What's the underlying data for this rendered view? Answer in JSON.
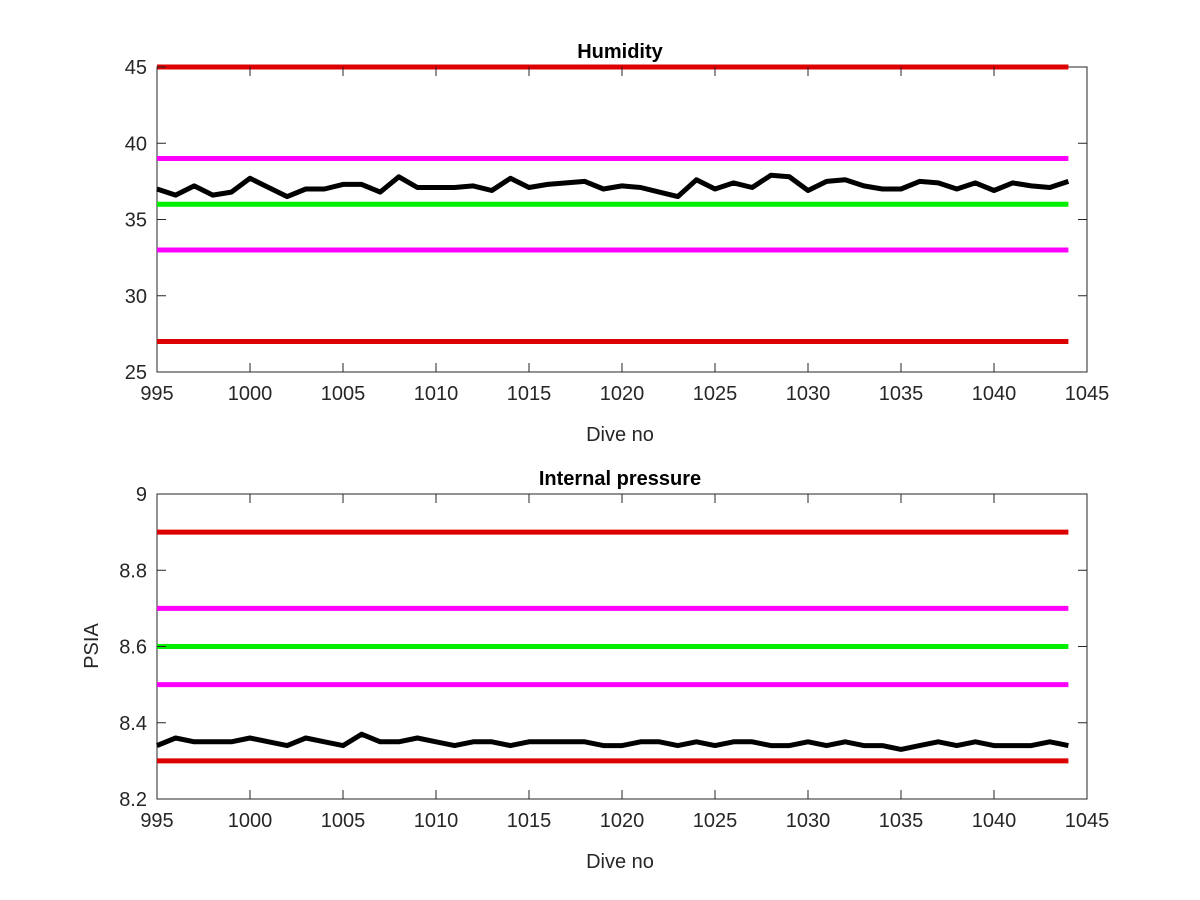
{
  "chart_data": [
    {
      "type": "line",
      "title": "Humidity",
      "xlabel": "Dive no",
      "ylabel": "",
      "xlim": [
        995,
        1045
      ],
      "ylim": [
        25,
        45
      ],
      "xticks": [
        "995",
        "1000",
        "1005",
        "1010",
        "1015",
        "1020",
        "1025",
        "1030",
        "1035",
        "1040",
        "1045"
      ],
      "yticks": [
        "25",
        "30",
        "35",
        "40",
        "45"
      ],
      "grid": false,
      "legend": "none",
      "hlines": [
        {
          "y": 45,
          "color": "#dd0000"
        },
        {
          "y": 39,
          "color": "#ff00ff"
        },
        {
          "y": 36,
          "color": "#00ee00"
        },
        {
          "y": 33,
          "color": "#ff00ff"
        },
        {
          "y": 27,
          "color": "#dd0000"
        }
      ],
      "series": [
        {
          "color": "#000000",
          "x": [
            995,
            996,
            997,
            998,
            999,
            1000,
            1001,
            1002,
            1003,
            1004,
            1005,
            1006,
            1007,
            1008,
            1009,
            1010,
            1011,
            1012,
            1013,
            1014,
            1015,
            1016,
            1017,
            1018,
            1019,
            1020,
            1021,
            1022,
            1023,
            1024,
            1025,
            1026,
            1027,
            1028,
            1029,
            1030,
            1031,
            1032,
            1033,
            1034,
            1035,
            1036,
            1037,
            1038,
            1039,
            1040,
            1041,
            1042,
            1043,
            1044
          ],
          "y": [
            37.0,
            36.6,
            37.2,
            36.6,
            36.8,
            37.7,
            37.1,
            36.5,
            37.0,
            37.0,
            37.3,
            37.3,
            36.8,
            37.8,
            37.1,
            37.1,
            37.1,
            37.2,
            36.9,
            37.7,
            37.1,
            37.3,
            37.4,
            37.5,
            37.0,
            37.2,
            37.1,
            36.8,
            36.5,
            37.6,
            37.0,
            37.4,
            37.1,
            37.9,
            37.8,
            36.9,
            37.5,
            37.6,
            37.2,
            37.0,
            37.0,
            37.5,
            37.4,
            37.0,
            37.4,
            36.9,
            37.4,
            37.2,
            37.1,
            37.5
          ]
        }
      ]
    },
    {
      "type": "line",
      "title": "Internal pressure",
      "xlabel": "Dive no",
      "ylabel": "PSIA",
      "xlim": [
        995,
        1045
      ],
      "ylim": [
        8.2,
        9.0
      ],
      "xticks": [
        "995",
        "1000",
        "1005",
        "1010",
        "1015",
        "1020",
        "1025",
        "1030",
        "1035",
        "1040",
        "1045"
      ],
      "yticks": [
        "8.2",
        "8.4",
        "8.6",
        "8.8",
        "9"
      ],
      "grid": false,
      "legend": "none",
      "hlines": [
        {
          "y": 8.9,
          "color": "#dd0000"
        },
        {
          "y": 8.7,
          "color": "#ff00ff"
        },
        {
          "y": 8.6,
          "color": "#00ee00"
        },
        {
          "y": 8.5,
          "color": "#ff00ff"
        },
        {
          "y": 8.3,
          "color": "#dd0000"
        }
      ],
      "series": [
        {
          "color": "#000000",
          "x": [
            995,
            996,
            997,
            998,
            999,
            1000,
            1001,
            1002,
            1003,
            1004,
            1005,
            1006,
            1007,
            1008,
            1009,
            1010,
            1011,
            1012,
            1013,
            1014,
            1015,
            1016,
            1017,
            1018,
            1019,
            1020,
            1021,
            1022,
            1023,
            1024,
            1025,
            1026,
            1027,
            1028,
            1029,
            1030,
            1031,
            1032,
            1033,
            1034,
            1035,
            1036,
            1037,
            1038,
            1039,
            1040,
            1041,
            1042,
            1043,
            1044
          ],
          "y": [
            8.34,
            8.36,
            8.35,
            8.35,
            8.35,
            8.36,
            8.35,
            8.34,
            8.36,
            8.35,
            8.34,
            8.37,
            8.35,
            8.35,
            8.36,
            8.35,
            8.34,
            8.35,
            8.35,
            8.34,
            8.35,
            8.35,
            8.35,
            8.35,
            8.34,
            8.34,
            8.35,
            8.35,
            8.34,
            8.35,
            8.34,
            8.35,
            8.35,
            8.34,
            8.34,
            8.35,
            8.34,
            8.35,
            8.34,
            8.34,
            8.33,
            8.34,
            8.35,
            8.34,
            8.35,
            8.34,
            8.34,
            8.34,
            8.35,
            8.34
          ]
        }
      ]
    }
  ]
}
